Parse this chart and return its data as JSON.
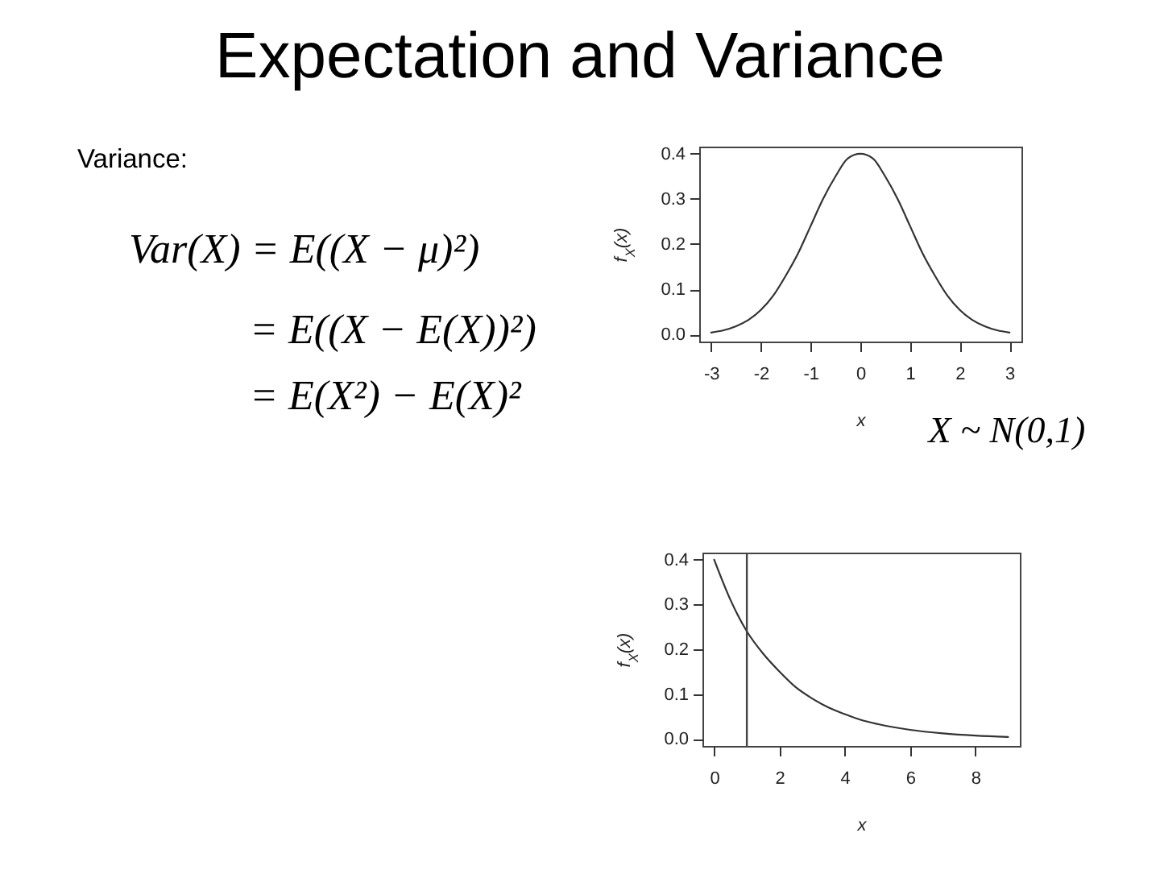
{
  "chart_data": [
    {
      "type": "other",
      "title": "Expectation and Variance",
      "subtitle": "Variance:",
      "annotations": [
        "Var(X) = E((X − μ)²)",
        "= E((X − E(X))²)",
        "= E(X²) − E(X)²"
      ]
    },
    {
      "type": "line",
      "x": [
        -3,
        -2.75,
        -2.5,
        -2.25,
        -2,
        -1.75,
        -1.5,
        -1.25,
        -1,
        -0.75,
        -0.5,
        -0.25,
        0,
        0.25,
        0.5,
        0.75,
        1,
        1.25,
        1.5,
        1.75,
        2,
        2.25,
        2.5,
        2.75,
        3
      ],
      "values": [
        0.004,
        0.009,
        0.018,
        0.032,
        0.054,
        0.086,
        0.13,
        0.18,
        0.24,
        0.3,
        0.35,
        0.39,
        0.4,
        0.39,
        0.35,
        0.3,
        0.24,
        0.18,
        0.13,
        0.086,
        0.054,
        0.032,
        0.018,
        0.009,
        0.004
      ],
      "color": "#333333",
      "xlim": [
        -3.24,
        3.24
      ],
      "ylim": [
        -0.016,
        0.416
      ],
      "xticks": [
        -3,
        -2,
        -1,
        0,
        1,
        2,
        3
      ],
      "yticks": [
        {
          "value": 0,
          "label": "0.0"
        },
        0.1,
        0.2,
        0.3,
        0.4
      ],
      "xlabel": "x",
      "ylabel": "f$_{X}$(x)",
      "annotations": [
        "X ~ N(0,1)"
      ]
    },
    {
      "type": "line",
      "x": [
        0,
        0.5,
        1,
        1.5,
        2,
        2.5,
        3,
        3.5,
        4,
        4.5,
        5,
        6,
        7,
        8,
        9
      ],
      "values": [
        0.4,
        0.31,
        0.24,
        0.19,
        0.15,
        0.115,
        0.09,
        0.07,
        0.055,
        0.042,
        0.033,
        0.02,
        0.012,
        0.007,
        0.004
      ],
      "color": "#333333",
      "xlim": [
        -0.36,
        9.36
      ],
      "ylim": [
        -0.016,
        0.416
      ],
      "xticks": [
        0,
        2,
        4,
        6,
        8
      ],
      "yticks": [
        {
          "value": 0,
          "label": "0.0"
        },
        0.1,
        0.2,
        0.3,
        0.4
      ],
      "xlabel": "x",
      "ylabel": "f$_{X}$(x)",
      "ref_lines": [
        {
          "axis": "x",
          "value": 1,
          "color": "#444444"
        }
      ]
    }
  ]
}
